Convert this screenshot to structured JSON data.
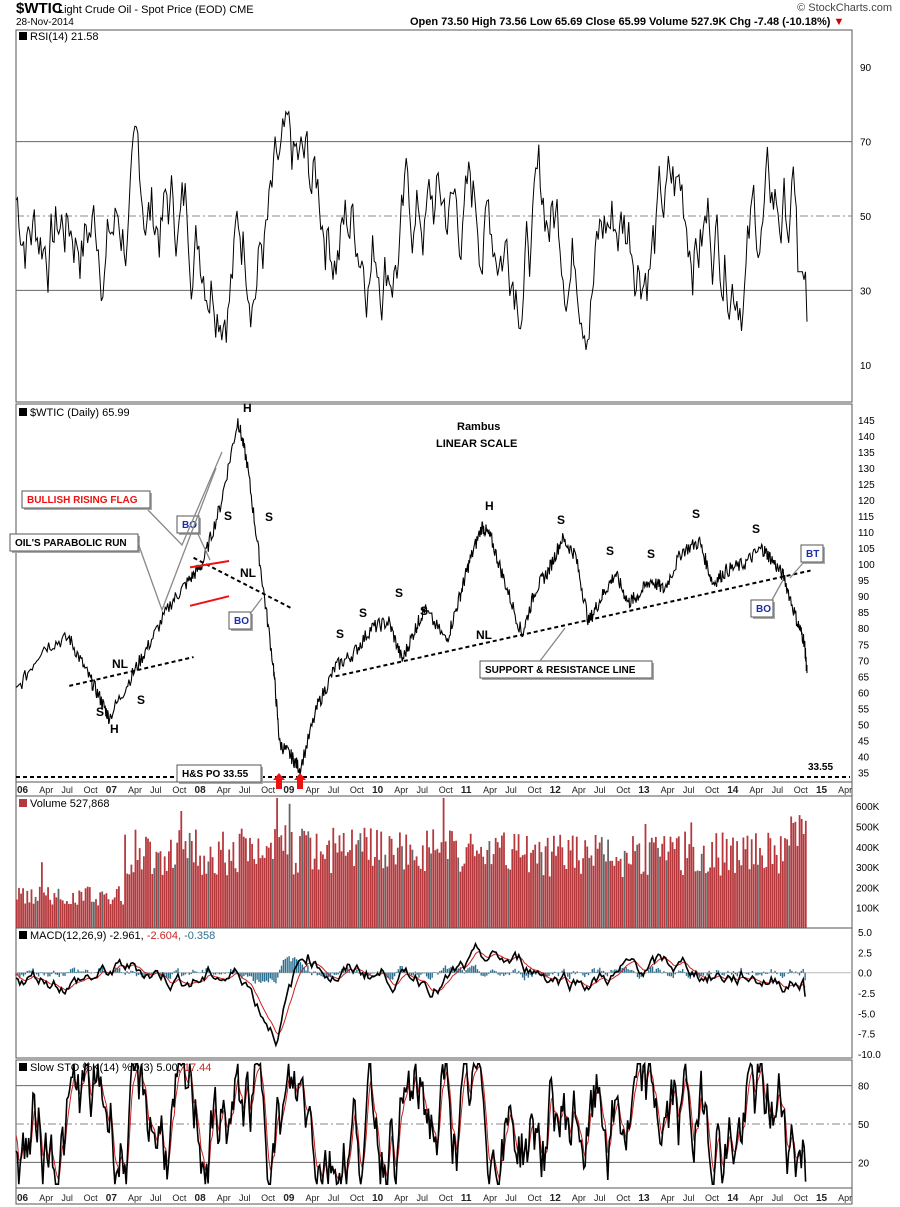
{
  "header": {
    "symbol": "$WTIC",
    "description": "Light Crude Oil - Spot Price (EOD)",
    "exchange": "CME",
    "date": "28-Nov-2014",
    "ohlc": "Open 73.50  High 73.56  Low 65.69  Close 65.99  Volume 527.9K  Chg -7.48 (-10.18%)",
    "down_arrow": "▼",
    "source": "© StockCharts.com"
  },
  "colors": {
    "price": "#000000",
    "volume": "#b5383c",
    "macd_signal": "#cc2222",
    "histogram": "#2a6f8f",
    "annotation_red": "#ee1111",
    "bo_blue": "#1a2eaa"
  },
  "chart_data": [
    {
      "type": "line",
      "panel": "rsi",
      "label": "RSI(14) 21.58",
      "ylim": [
        0,
        100
      ],
      "yticks": [
        10,
        30,
        50,
        70,
        90
      ],
      "levels": [
        30,
        50,
        70
      ],
      "series": [
        {
          "name": "RSI(14)",
          "last": 21.58
        }
      ]
    },
    {
      "type": "line",
      "panel": "price",
      "label": "$WTIC (Daily) 65.99",
      "scale": "linear",
      "ylim": [
        32,
        150
      ],
      "yticks": [
        35,
        40,
        45,
        50,
        55,
        60,
        65,
        70,
        75,
        80,
        85,
        90,
        95,
        100,
        105,
        110,
        115,
        120,
        125,
        130,
        135,
        140,
        145
      ],
      "x_labels": [
        "06",
        "Apr",
        "Jul",
        "Oct",
        "07",
        "Apr",
        "Jul",
        "Oct",
        "08",
        "Apr",
        "Jul",
        "Oct",
        "09",
        "Apr",
        "Jul",
        "Oct",
        "10",
        "Apr",
        "Jul",
        "Oct",
        "11",
        "Apr",
        "Jul",
        "Oct",
        "12",
        "Apr",
        "Jul",
        "Oct",
        "13",
        "Apr",
        "Jul",
        "Oct",
        "14",
        "Apr",
        "Jul",
        "Oct",
        "15",
        "Apr"
      ],
      "x": [
        2006.0,
        2006.3,
        2006.6,
        2006.8,
        2006.95,
        2007.05,
        2007.3,
        2007.5,
        2007.75,
        2007.95,
        2008.1,
        2008.3,
        2008.5,
        2008.6,
        2008.75,
        2008.9,
        2008.97,
        2009.1,
        2009.2,
        2009.4,
        2009.6,
        2009.8,
        2010.0,
        2010.2,
        2010.35,
        2010.5,
        2010.6,
        2010.85,
        2011.0,
        2011.1,
        2011.25,
        2011.35,
        2011.5,
        2011.7,
        2011.85,
        2012.0,
        2012.15,
        2012.3,
        2012.45,
        2012.6,
        2012.75,
        2012.9,
        2013.0,
        2013.15,
        2013.3,
        2013.5,
        2013.7,
        2013.85,
        2014.0,
        2014.2,
        2014.4,
        2014.5,
        2014.65,
        2014.8,
        2014.88,
        2014.91
      ],
      "values": [
        60,
        74,
        77,
        66,
        58,
        52,
        65,
        75,
        88,
        95,
        100,
        118,
        145,
        132,
        100,
        68,
        44,
        40,
        36,
        56,
        68,
        72,
        80,
        82,
        70,
        80,
        86,
        76,
        90,
        100,
        112,
        108,
        95,
        78,
        92,
        98,
        108,
        103,
        82,
        90,
        97,
        88,
        90,
        95,
        92,
        104,
        107,
        94,
        98,
        100,
        105,
        102,
        96,
        82,
        76,
        65.99
      ],
      "annotations": {
        "title_note": "Rambus",
        "scale_note": "LINEAR SCALE",
        "flag_label": "BULLISH RISING FLAG",
        "parabolic_label": "OIL'S PARABOLIC RUN",
        "support_label": "SUPPORT & RESISTANCE LINE",
        "po_label": "H&S PO 33.55",
        "po_value": "33.55",
        "bo": "BO",
        "bt": "BT",
        "nl": "NL",
        "s": "S",
        "h": "H"
      }
    },
    {
      "type": "bar",
      "panel": "volume",
      "label": "Volume 527,868",
      "ylim": [
        0,
        650000
      ],
      "yticks": [
        "100K",
        "200K",
        "300K",
        "400K",
        "500K",
        "600K"
      ],
      "ytick_values": [
        100000,
        200000,
        300000,
        400000,
        500000,
        600000
      ]
    },
    {
      "type": "line",
      "panel": "macd",
      "label_main": "MACD(12,26,9) -2.961,",
      "label_signal": "-2.604,",
      "label_hist": "-0.358",
      "ylim": [
        -10.5,
        5.5
      ],
      "yticks": [
        "5.0",
        "2.5",
        "0.0",
        "-2.5",
        "-5.0",
        "-7.5",
        "-10.0"
      ],
      "ytick_values": [
        5,
        2.5,
        0,
        -2.5,
        -5,
        -7.5,
        -10
      ]
    },
    {
      "type": "line",
      "panel": "stochastic",
      "label_main": "Slow STO %K(14) %D(3) 5.00,",
      "label_d": "17.44",
      "ylim": [
        0,
        100
      ],
      "yticks": [
        20,
        50,
        80
      ],
      "levels": [
        20,
        50,
        80
      ]
    }
  ]
}
